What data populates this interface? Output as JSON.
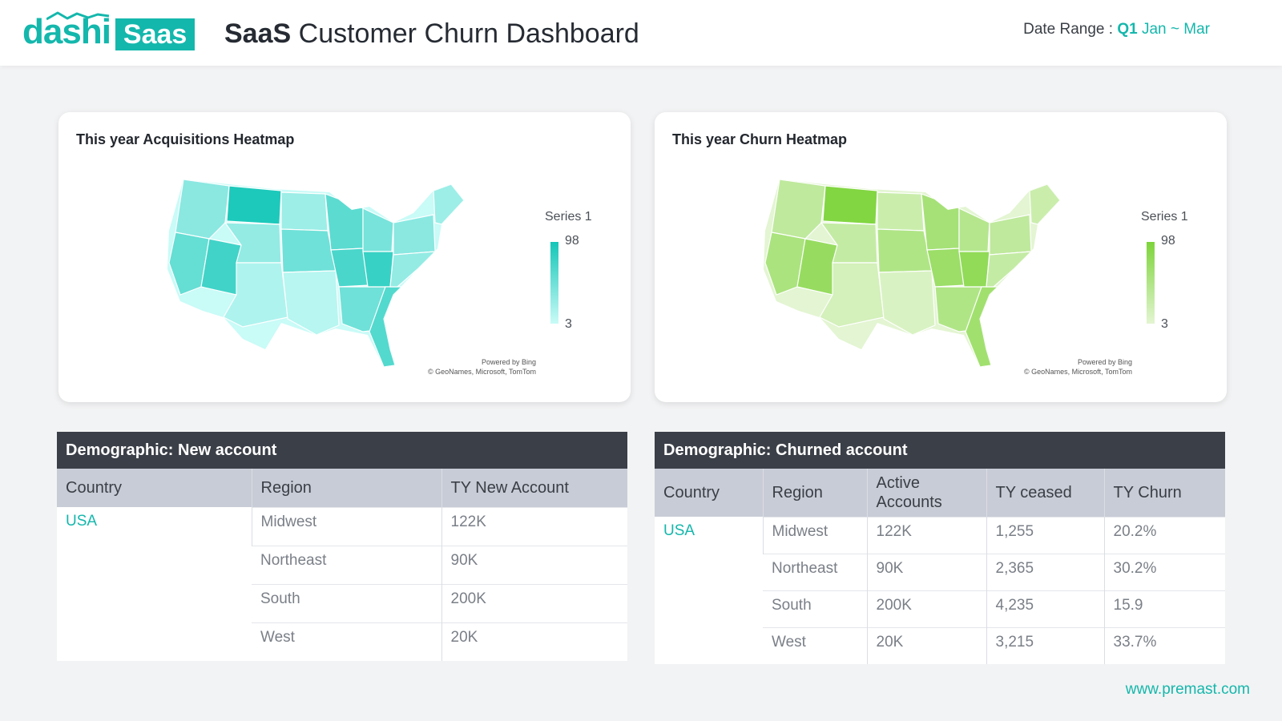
{
  "header": {
    "logo_text": "dashi",
    "logo_badge": "Saas",
    "title_bold": "SaaS",
    "title_rest": " Customer Churn Dashboard",
    "date_label": "Date Range : ",
    "date_quarter": "Q1",
    "date_months": " Jan ~ Mar"
  },
  "acq_map": {
    "title": "This year Acquisitions Heatmap",
    "legend_title": "Series 1",
    "legend_max": "98",
    "legend_min": "3",
    "credit_line1": "Powered by Bing",
    "credit_line2": "© GeoNames, Microsoft, TomTom",
    "color_high": "#14c6b8",
    "color_low": "#c9fbf7"
  },
  "churn_map": {
    "title": "This year Churn Heatmap",
    "legend_title": "Series 1",
    "legend_max": "98",
    "legend_min": "3",
    "credit_line1": "Powered by Bing",
    "credit_line2": "© GeoNames, Microsoft, TomTom",
    "color_high": "#7dd43a",
    "color_low": "#e3f5d2"
  },
  "new_table": {
    "title": "Demographic: New account",
    "headers": [
      "Country",
      "Region",
      "TY New Account"
    ],
    "country": "USA",
    "rows": [
      {
        "region": "Midwest",
        "value": "122K"
      },
      {
        "region": "Northeast",
        "value": "90K"
      },
      {
        "region": "South",
        "value": "200K"
      },
      {
        "region": "West",
        "value": "20K"
      }
    ]
  },
  "churn_table": {
    "title": "Demographic: Churned account",
    "headers": [
      "Country",
      "Region",
      "Active Accounts",
      "TY ceased",
      "TY Churn"
    ],
    "country": "USA",
    "rows": [
      {
        "region": "Midwest",
        "active": "122K",
        "ceased": "1,255",
        "churn": "20.2%"
      },
      {
        "region": "Northeast",
        "active": "90K",
        "ceased": "2,365",
        "churn": "30.2%"
      },
      {
        "region": "South",
        "active": "200K",
        "ceased": "4,235",
        "churn": "15.9"
      },
      {
        "region": "West",
        "active": "20K",
        "ceased": "3,215",
        "churn": "33.7%"
      }
    ]
  },
  "footer": {
    "website": "www.premast.com"
  },
  "colors": {
    "accent": "#14b7ac",
    "table_header_dark": "#3b3f47",
    "table_header_light": "#c8ccd6"
  }
}
